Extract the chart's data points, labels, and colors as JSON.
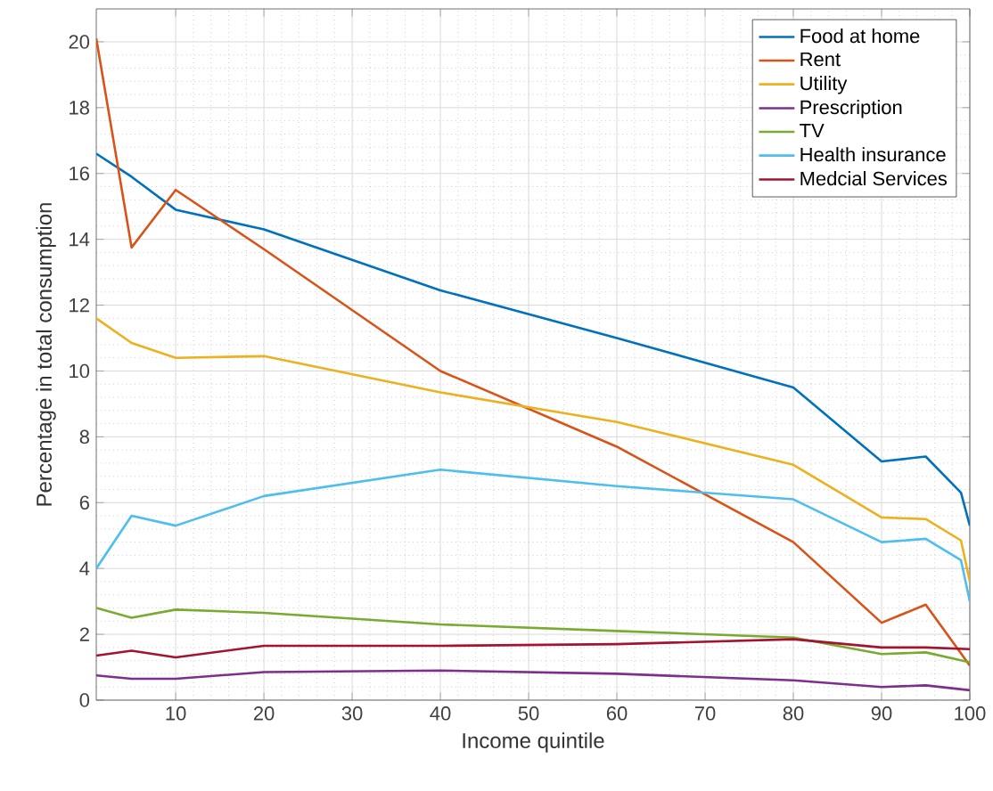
{
  "chart_data": {
    "type": "line",
    "xlabel": "Income quintile",
    "ylabel": "Percentage in total consumption",
    "xlim": [
      1,
      100
    ],
    "ylim": [
      0,
      21
    ],
    "xticks": [
      10,
      20,
      30,
      40,
      50,
      60,
      70,
      80,
      90,
      100
    ],
    "yticks": [
      0,
      2,
      4,
      6,
      8,
      10,
      12,
      14,
      16,
      18,
      20
    ],
    "grid": true,
    "legend": "top right",
    "marker": "none",
    "line_style": "solid",
    "series": [
      {
        "name": "Food at home",
        "color": "#0072bd",
        "x": [
          1,
          5,
          10,
          20,
          40,
          60,
          80,
          90,
          95,
          99,
          100
        ],
        "values": [
          16.6,
          15.9,
          14.9,
          14.3,
          12.45,
          11.0,
          9.5,
          7.25,
          7.4,
          6.3,
          5.3
        ]
      },
      {
        "name": "Rent",
        "color": "#d95319",
        "x": [
          1,
          5,
          10,
          20,
          40,
          60,
          80,
          90,
          95,
          100
        ],
        "values": [
          20.1,
          13.75,
          15.5,
          13.7,
          10.0,
          7.7,
          4.8,
          2.35,
          2.9,
          1.05
        ]
      },
      {
        "name": "Utility",
        "color": "#edb120",
        "x": [
          1,
          5,
          10,
          20,
          40,
          60,
          80,
          90,
          95,
          99,
          100
        ],
        "values": [
          11.6,
          10.85,
          10.4,
          10.45,
          9.35,
          8.45,
          7.15,
          5.55,
          5.5,
          4.85,
          3.6
        ]
      },
      {
        "name": "Prescription",
        "color": "#7e2f8e",
        "x": [
          1,
          5,
          10,
          20,
          40,
          60,
          80,
          90,
          95,
          100
        ],
        "values": [
          0.75,
          0.65,
          0.65,
          0.85,
          0.9,
          0.8,
          0.6,
          0.4,
          0.45,
          0.3
        ]
      },
      {
        "name": "TV",
        "color": "#77ac30",
        "x": [
          1,
          5,
          10,
          20,
          40,
          60,
          80,
          90,
          95,
          100
        ],
        "values": [
          2.8,
          2.5,
          2.75,
          2.65,
          2.3,
          2.1,
          1.9,
          1.4,
          1.45,
          1.15
        ]
      },
      {
        "name": "Health insurance",
        "color": "#4dbeee",
        "x": [
          1,
          5,
          10,
          20,
          40,
          60,
          80,
          90,
          95,
          99,
          100
        ],
        "values": [
          4.0,
          5.6,
          5.3,
          6.2,
          7.0,
          6.5,
          6.1,
          4.8,
          4.9,
          4.25,
          3.0
        ]
      },
      {
        "name": "Medcial Services",
        "color": "#a2142f",
        "x": [
          1,
          5,
          10,
          20,
          40,
          60,
          80,
          90,
          95,
          100
        ],
        "values": [
          1.35,
          1.5,
          1.3,
          1.65,
          1.65,
          1.7,
          1.85,
          1.6,
          1.6,
          1.55
        ]
      }
    ]
  }
}
